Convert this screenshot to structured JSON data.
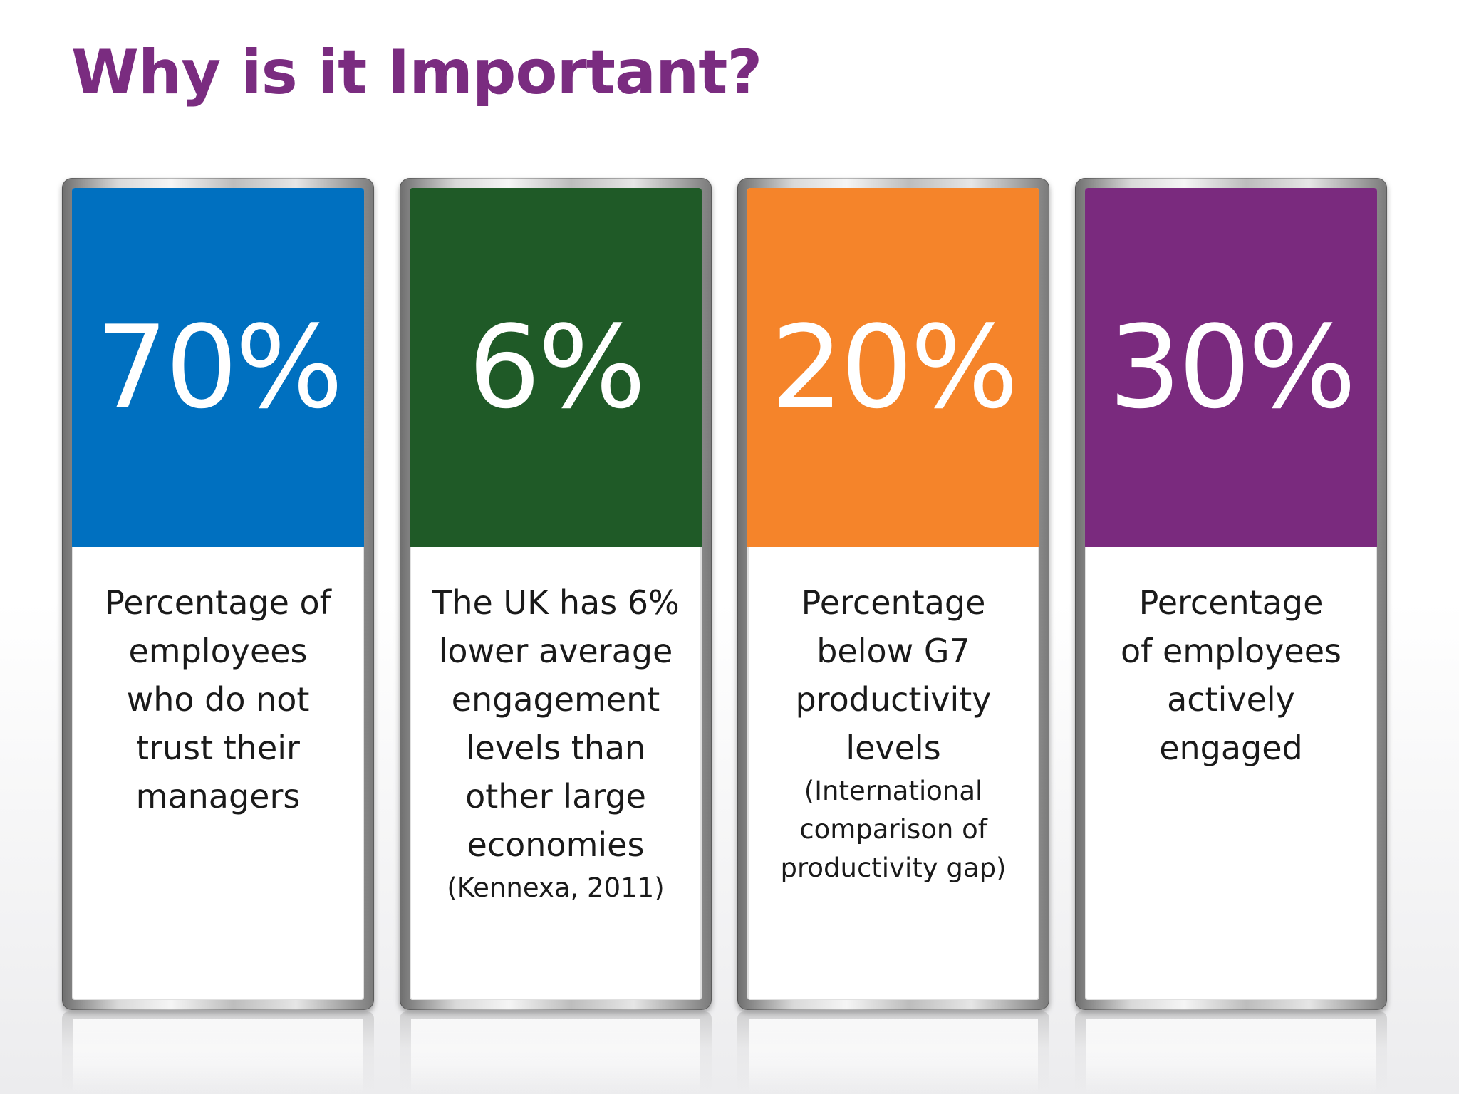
{
  "slide": {
    "title": "Why is it Important?",
    "title_color": "#7a2c80"
  },
  "cards": [
    {
      "value": "70%",
      "color": "#0070c0",
      "description": "Percentage of employees who do not trust their managers",
      "note": ""
    },
    {
      "value": "6%",
      "color": "#1f5a27",
      "description": "The UK has 6% lower average engagement levels than other large economies",
      "note": "(Kennexa, 2011)"
    },
    {
      "value": "20%",
      "color": "#f5842a",
      "description": "Percentage below G7 productivity levels",
      "note": "(International comparison of productivity gap)"
    },
    {
      "value": "30%",
      "color": "#7a2a7e",
      "description": "Percentage of employees actively engaged",
      "note": ""
    }
  ]
}
